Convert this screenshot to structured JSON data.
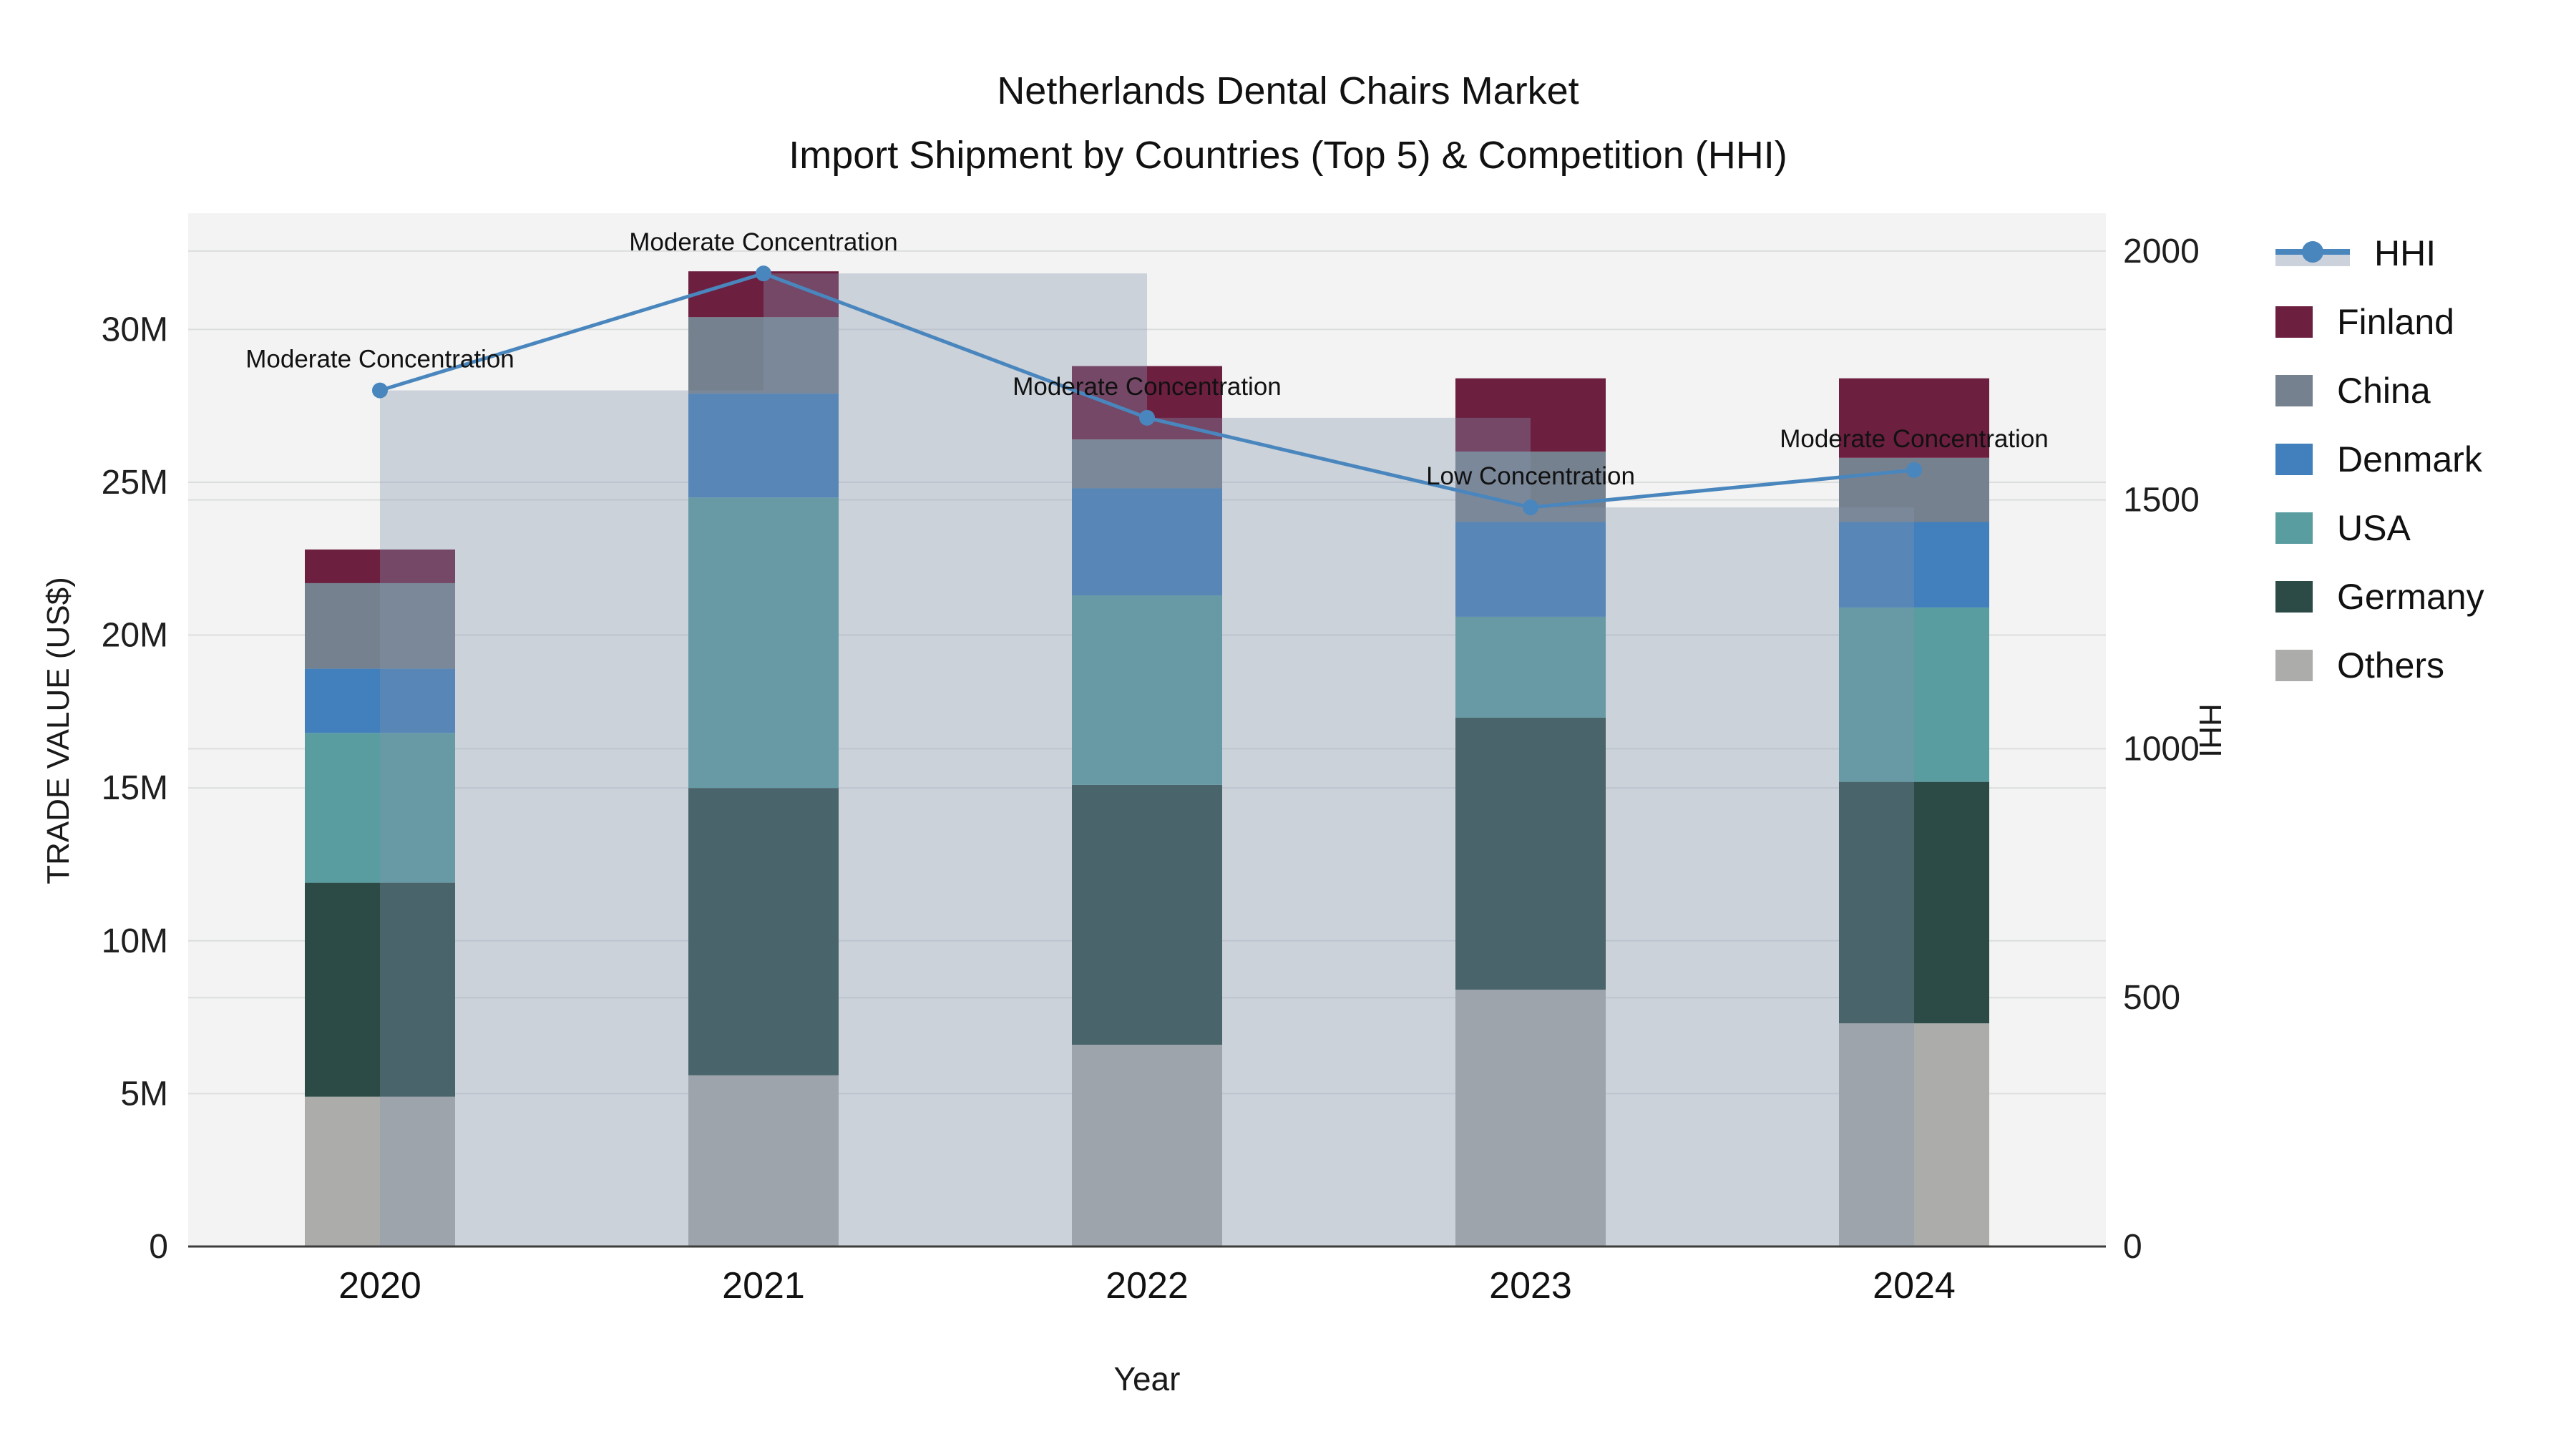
{
  "title": {
    "line1": "Netherlands Dental Chairs Market",
    "line2": "Import Shipment by Countries (Top 5) & Competition (HHI)"
  },
  "axes": {
    "left_title": "TRADE VALUE (US$)",
    "right_title": "HHI",
    "x_title": "Year",
    "left_ticks": [
      {
        "label": "0",
        "value": 0
      },
      {
        "label": "5M",
        "value": 5
      },
      {
        "label": "10M",
        "value": 10
      },
      {
        "label": "15M",
        "value": 15
      },
      {
        "label": "20M",
        "value": 20
      },
      {
        "label": "25M",
        "value": 25
      },
      {
        "label": "30M",
        "value": 30
      }
    ],
    "right_ticks": [
      {
        "label": "0",
        "value": 0
      },
      {
        "label": "500",
        "value": 500
      },
      {
        "label": "1000",
        "value": 1000
      },
      {
        "label": "1500",
        "value": 1500
      },
      {
        "label": "2000",
        "value": 2000
      }
    ]
  },
  "legend": [
    {
      "label": "HHI",
      "type": "line",
      "color": "#4A86BE",
      "band": "#CCD2DC"
    },
    {
      "label": "Finland",
      "type": "swatch",
      "color": "#6C1F3F"
    },
    {
      "label": "China",
      "type": "swatch",
      "color": "#75818F"
    },
    {
      "label": "Denmark",
      "type": "swatch",
      "color": "#4180BC"
    },
    {
      "label": "USA",
      "type": "swatch",
      "color": "#5A9DA1"
    },
    {
      "label": "Germany",
      "type": "swatch",
      "color": "#2C4B47"
    },
    {
      "label": "Others",
      "type": "swatch",
      "color": "#ACACAA"
    }
  ],
  "chart_data": {
    "type": "bar+line",
    "title": "Netherlands Dental Chairs Market — Import Shipment by Countries (Top 5) & Competition (HHI)",
    "xlabel": "Year",
    "ylabel_left": "TRADE VALUE (US$)",
    "ylabel_right": "HHI",
    "x": [
      2020,
      2021,
      2022,
      2023,
      2024
    ],
    "units_left": "million US$",
    "ylim_left": [
      0,
      33.8
    ],
    "ylim_right": [
      0,
      2076
    ],
    "grid": true,
    "legend_position": "right",
    "stack_order_bottom_to_top": [
      "Others",
      "Germany",
      "USA",
      "Denmark",
      "China",
      "Finland"
    ],
    "series": [
      {
        "name": "Finland",
        "color": "#6C1F3F",
        "values": [
          1.1,
          1.5,
          2.4,
          2.4,
          2.6
        ]
      },
      {
        "name": "China",
        "color": "#75818F",
        "values": [
          2.8,
          2.5,
          1.6,
          2.3,
          2.1
        ]
      },
      {
        "name": "Denmark",
        "color": "#4180BC",
        "values": [
          2.1,
          3.4,
          3.5,
          3.1,
          2.8
        ]
      },
      {
        "name": "USA",
        "color": "#5A9DA1",
        "values": [
          4.9,
          9.5,
          6.2,
          3.3,
          5.7
        ]
      },
      {
        "name": "Germany",
        "color": "#2C4B47",
        "values": [
          7.0,
          9.4,
          8.5,
          8.9,
          7.9
        ]
      },
      {
        "name": "Others",
        "color": "#ACACAA",
        "values": [
          4.9,
          5.6,
          6.6,
          8.4,
          7.3
        ]
      }
    ],
    "bar_totals": [
      22.8,
      31.9,
      28.8,
      28.4,
      28.4
    ],
    "hhi": {
      "name": "HHI",
      "values": [
        1720,
        1955,
        1665,
        1485,
        1560
      ],
      "line_color": "#4A86BE",
      "area_color": "rgba(133,148,174,0.35)",
      "area_step": "step-after"
    },
    "annotations": [
      {
        "x": 2020,
        "text": "Moderate Concentration"
      },
      {
        "x": 2021,
        "text": "Moderate Concentration"
      },
      {
        "x": 2022,
        "text": "Moderate Concentration"
      },
      {
        "x": 2023,
        "text": "Low Concentration"
      },
      {
        "x": 2024,
        "text": "Moderate Concentration"
      }
    ]
  }
}
